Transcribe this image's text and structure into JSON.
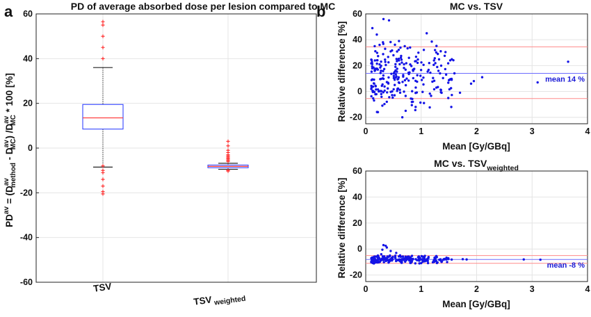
{
  "panel_letters": {
    "a": "a",
    "b": "b"
  },
  "colors": {
    "box": "#3344ff",
    "median": "#ff3030",
    "outlier": "#ff2222",
    "points": "#1414e6",
    "mean_line": "#6b6bff",
    "loa_line": "#ff8a8a",
    "grid": "#e4e4e4",
    "axis": "#222222"
  },
  "chart_data": [
    {
      "type": "box",
      "title": "PD of average absorbed dose per lesion compared to MC",
      "ylabel": {
        "base": "PD",
        "sup1": "av",
        "eq": " = (D",
        "sup2": "av",
        "sub2": "method",
        "minus": " - D",
        "sup3": "av",
        "sub3": "MC",
        "mid": ") /D",
        "sup4": "av",
        "sub4": "MC",
        "tail": " * 100 [%]"
      },
      "ylim": [
        -60,
        60
      ],
      "yticks": [
        -60,
        -40,
        -20,
        0,
        20,
        40,
        60
      ],
      "grid": true,
      "groups": [
        {
          "label": "TSV",
          "label_sub": "",
          "q1": 8.5,
          "median": 13.5,
          "q3": 19.5,
          "whisker_low": -8.5,
          "whisker_high": 36,
          "outliers": [
            56.5,
            55,
            50,
            45,
            40,
            -8,
            -10,
            -11,
            -14,
            -17,
            -19.5,
            -20.5
          ]
        },
        {
          "label": "TSV",
          "label_sub": "weighted",
          "q1": -8.8,
          "median": -8.2,
          "q3": -7.6,
          "whisker_low": -9.5,
          "whisker_high": -6.8,
          "outliers": [
            3,
            1,
            -1,
            -2,
            -3,
            -3.5,
            -4,
            -4.5,
            -5,
            -5.5,
            -6,
            -10,
            -10.3
          ]
        }
      ]
    },
    {
      "type": "scatter",
      "title": "MC vs. TSV",
      "title_sub": "",
      "xlabel": "Mean [Gy/GBq]",
      "ylabel": "Relative difference [%]",
      "xlim": [
        0,
        4
      ],
      "ylim": [
        -25,
        60
      ],
      "xticks": [
        0,
        1,
        2,
        3,
        4
      ],
      "yticks": [
        -20,
        0,
        20,
        40,
        60
      ],
      "grid": true,
      "mean": 14,
      "mean_label": "mean 14 %",
      "upper_loa": 34.5,
      "lower_loa": -5.5,
      "points": [
        [
          0.12,
          49
        ],
        [
          0.2,
          44
        ],
        [
          0.32,
          56
        ],
        [
          0.42,
          55
        ],
        [
          0.25,
          36
        ],
        [
          1.1,
          45
        ],
        [
          0.6,
          39
        ],
        [
          0.78,
          26
        ],
        [
          0.6,
          24
        ],
        [
          3.65,
          23
        ],
        [
          1.95,
          8
        ],
        [
          2.1,
          11
        ],
        [
          1.9,
          6
        ],
        [
          3.1,
          7
        ],
        [
          0.22,
          -16
        ],
        [
          0.15,
          -7
        ],
        [
          0.66,
          -20
        ],
        [
          0.38,
          -8
        ],
        [
          0.72,
          -15
        ],
        [
          0.85,
          -8
        ],
        [
          0.52,
          -3
        ],
        [
          1.05,
          -9
        ],
        [
          0.3,
          -11
        ],
        [
          0.9,
          -12
        ],
        [
          1.7,
          -1
        ],
        [
          1.45,
          13
        ],
        [
          1.55,
          9
        ],
        [
          1.6,
          14
        ],
        [
          0.45,
          31
        ],
        [
          0.35,
          33
        ],
        [
          0.5,
          28
        ],
        [
          1.3,
          29
        ],
        [
          1.25,
          32
        ],
        [
          0.95,
          30
        ],
        [
          0.8,
          34
        ],
        [
          0.28,
          -2
        ],
        [
          0.14,
          0
        ],
        [
          0.18,
          4
        ]
      ]
    },
    {
      "type": "scatter",
      "title": "MC vs. TSV",
      "title_sub": "weighted",
      "xlabel": "Mean [Gy/GBq]",
      "ylabel": "Relative difference [%]",
      "xlim": [
        0,
        4
      ],
      "ylim": [
        -25,
        60
      ],
      "xticks": [
        0,
        1,
        2,
        3,
        4
      ],
      "yticks": [
        -20,
        0,
        20,
        40,
        60
      ],
      "grid": true,
      "mean": -8,
      "mean_label": "mean -8 %",
      "upper_loa": -5,
      "lower_loa": -11,
      "points": [
        [
          0.32,
          3
        ],
        [
          0.36,
          2.5
        ],
        [
          0.38,
          1.2
        ],
        [
          0.3,
          -0.5
        ],
        [
          0.45,
          -1.5
        ],
        [
          0.55,
          -3
        ],
        [
          0.28,
          -4
        ],
        [
          0.22,
          -5
        ],
        [
          1.75,
          -7.8
        ],
        [
          1.82,
          -8
        ],
        [
          2.85,
          -8
        ],
        [
          3.15,
          -8.2
        ],
        [
          1.35,
          -7.9
        ],
        [
          1.45,
          -8
        ],
        [
          1.55,
          -8.1
        ],
        [
          0.12,
          -10.5
        ],
        [
          0.2,
          -10.2
        ],
        [
          0.65,
          -9.5
        ]
      ]
    }
  ]
}
